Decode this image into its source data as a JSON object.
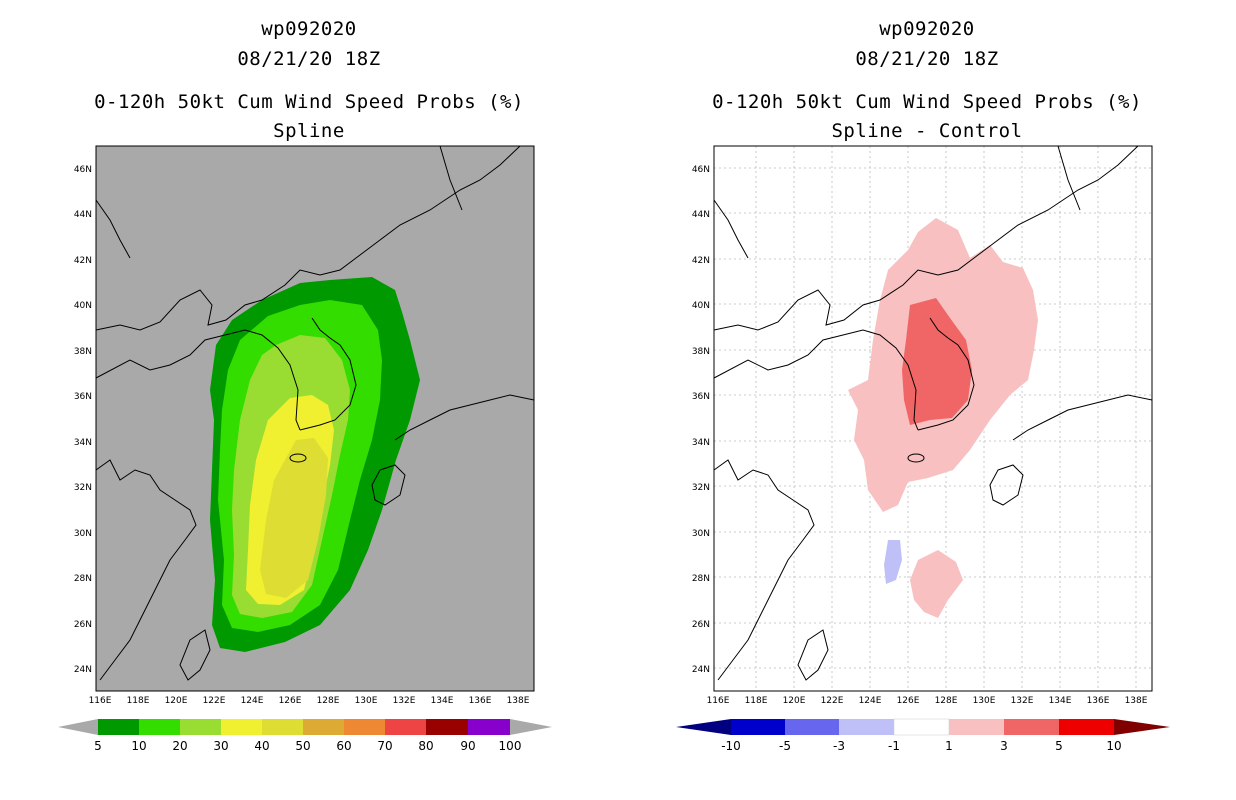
{
  "left_panel": {
    "storm_id": "wp092020",
    "datetime": "08/21/20 18Z",
    "product": "0-120h 50kt Cum Wind Speed Probs (%)",
    "subtitle": "Spline",
    "colorbar_labels": [
      "5",
      "10",
      "20",
      "30",
      "40",
      "50",
      "60",
      "70",
      "80",
      "90",
      "100"
    ],
    "colorbar_colors": [
      "#009900",
      "#33dd00",
      "#99dd33",
      "#f0f030",
      "#dddd33",
      "#ddaa33",
      "#ee8833",
      "#ee4444",
      "#990000",
      "#8800cc"
    ],
    "background_color": "#a9a9a9"
  },
  "right_panel": {
    "storm_id": "wp092020",
    "datetime": "08/21/20 18Z",
    "product": "0-120h 50kt Cum Wind Speed Probs (%)",
    "subtitle": "Spline - Control",
    "colorbar_labels": [
      "-10",
      "-5",
      "-3",
      "-1",
      "1",
      "3",
      "5",
      "10"
    ],
    "colorbar_colors": [
      "#0000cc",
      "#6666ee",
      "#c0c0f8",
      "#ffffff",
      "#f8c0c0",
      "#f06666",
      "#ee0000"
    ],
    "background_color": "#ffffff"
  },
  "axes": {
    "lon_ticks": [
      "116E",
      "118E",
      "120E",
      "122E",
      "124E",
      "126E",
      "128E",
      "130E",
      "132E",
      "134E",
      "136E",
      "138E"
    ],
    "lat_ticks": [
      "24N",
      "26N",
      "28N",
      "30N",
      "32N",
      "34N",
      "36N",
      "38N",
      "40N",
      "42N",
      "44N",
      "46N"
    ]
  }
}
